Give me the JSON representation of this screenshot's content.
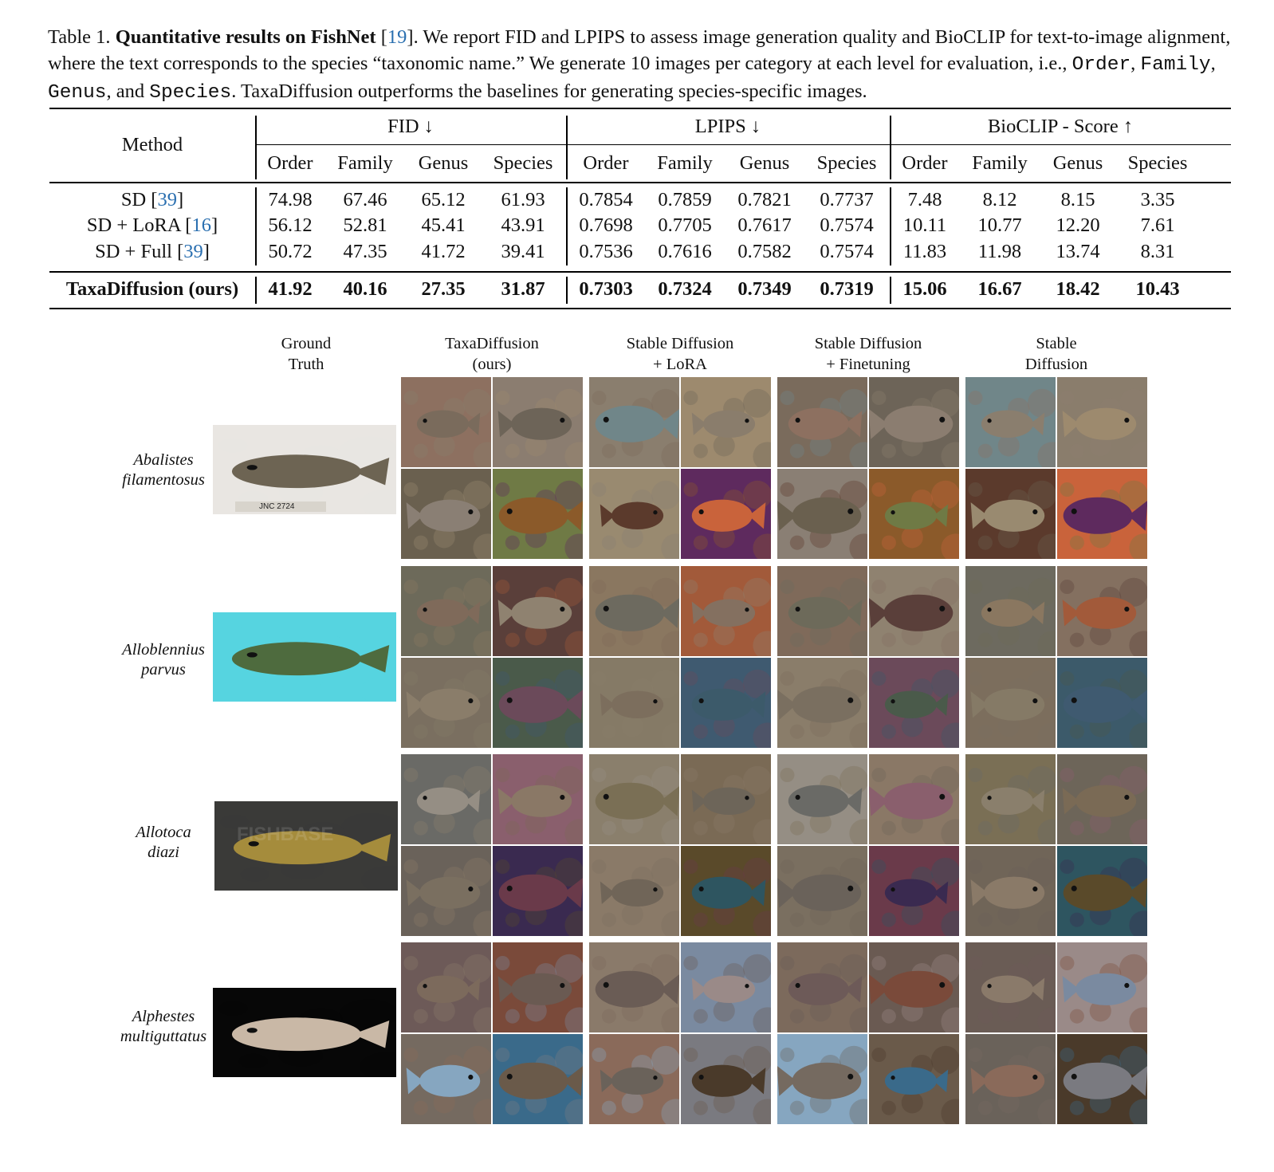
{
  "caption": {
    "label": "Table 1.",
    "title": "Quantitative results on FishNet",
    "ref": "19",
    "line1_after": ". We report FID and LPIPS to assess image generation quality and BioCLIP for text-to-image",
    "line2": "alignment, where the text corresponds to the species “taxonomic name.” We generate 10 images per category at each level for evaluation,",
    "line3_prefix": "i.e., ",
    "levels": [
      "Order",
      "Family",
      "Genus",
      "Species"
    ],
    "line3_and": "and",
    "line3_suffix": ". TaxaDiffusion outperforms the baselines for generating species-specific images."
  },
  "table": {
    "method_header": "Method",
    "groups": [
      "FID ↓",
      "LPIPS ↓",
      "BioCLIP - Score ↑"
    ],
    "subheaders": [
      "Order",
      "Family",
      "Genus",
      "Species"
    ],
    "rows": [
      {
        "name": "SD [",
        "ref": "39",
        "close": "]",
        "values": [
          "74.98",
          "67.46",
          "65.12",
          "61.93",
          "0.7854",
          "0.7859",
          "0.7821",
          "0.7737",
          "7.48",
          "8.12",
          "8.15",
          "3.35"
        ]
      },
      {
        "name": "SD + LoRA [",
        "ref": "16",
        "close": "]",
        "values": [
          "56.12",
          "52.81",
          "45.41",
          "43.91",
          "0.7698",
          "0.7705",
          "0.7617",
          "0.7574",
          "10.11",
          "10.77",
          "12.20",
          "7.61"
        ]
      },
      {
        "name": "SD + Full [",
        "ref": "39",
        "close": "]",
        "values": [
          "50.72",
          "47.35",
          "41.72",
          "39.41",
          "0.7536",
          "0.7616",
          "0.7582",
          "0.7574",
          "11.83",
          "11.98",
          "13.74",
          "8.31"
        ]
      }
    ],
    "ours": {
      "name": "TaxaDiffusion (ours)",
      "values": [
        "41.92",
        "40.16",
        "27.35",
        "31.87",
        "0.7303",
        "0.7324",
        "0.7349",
        "0.7319",
        "15.06",
        "16.67",
        "18.42",
        "10.43"
      ]
    }
  },
  "figure": {
    "columns": [
      {
        "line1": "Ground",
        "line2": "Truth"
      },
      {
        "line1": "TaxaDiffusion",
        "line2": "(ours)"
      },
      {
        "line1": "Stable Diffusion",
        "line2": "+ LoRA"
      },
      {
        "line1": "Stable Diffusion",
        "line2": "+ Finetuning"
      },
      {
        "line1": "Stable",
        "line2": "Diffusion"
      }
    ],
    "species": [
      {
        "line1": "Abalistes",
        "line2": "filamentosus",
        "gt_tag": "JNC 2724",
        "gt_bg": "#e9e6e2",
        "fish": "#6d6453"
      },
      {
        "line1": "Alloblennius",
        "line2": "parvus",
        "gt_bg": "#56d4e0",
        "fish": "#4e6b3e"
      },
      {
        "line1": "Allotoca",
        "line2": "diazi",
        "gt_watermark": "FISHBASE",
        "gt_bg": "#3a3a38",
        "fish": "#a58c3c"
      },
      {
        "line1": "Alphestes",
        "line2": "multiguttatus",
        "gt_bg": "#070707",
        "fish": "#c9b8a6"
      }
    ],
    "palette": [
      [
        "#8d7060",
        "#8a7e6e",
        "#7a6b5c",
        "#708689"
      ],
      [
        "#8b7d70",
        "#9d8a6e",
        "#6d6458",
        "#8a7d6c"
      ],
      [
        "#6a604f",
        "#998a70",
        "#8a7f74",
        "#5b3a2c"
      ],
      [
        "#6f7a45",
        "#5e2a5e",
        "#8b5a2a",
        "#c9633b"
      ],
      [
        "#6d6a5a",
        "#8a7760",
        "#7f6a5a",
        "#6d6a5f"
      ],
      [
        "#5a3f3a",
        "#a25a3a",
        "#8f8270",
        "#847060"
      ],
      [
        "#7a6f60",
        "#857a66",
        "#8a7d6a",
        "#7c6e5d"
      ],
      [
        "#4a5a4a",
        "#3f5a70",
        "#6b4a5a",
        "#3c5a6a"
      ],
      [
        "#6a6a66",
        "#8a7f6c",
        "#958e84",
        "#7a6f55"
      ],
      [
        "#8a5f6d",
        "#7a6a55",
        "#8a7866",
        "#6d6559"
      ],
      [
        "#6a625a",
        "#8a7a68",
        "#7a6f60",
        "#706558"
      ],
      [
        "#3a2a50",
        "#5a4a2a",
        "#6a3a4a",
        "#2e5560"
      ],
      [
        "#6d5a58",
        "#8a7a6a",
        "#7c6a5c",
        "#6a5c55"
      ],
      [
        "#7a4a3a",
        "#7a8aa0",
        "#6a5a52",
        "#9a8a88"
      ],
      [
        "#756a60",
        "#8a6a5a",
        "#86a6c0",
        "#6a625a"
      ],
      [
        "#3a6a8a",
        "#7a7a80",
        "#6a5a4a",
        "#4a3a2a"
      ]
    ]
  }
}
